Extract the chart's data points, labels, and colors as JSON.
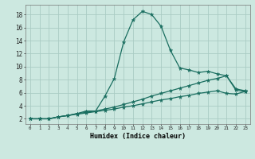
{
  "xlabel": "Humidex (Indice chaleur)",
  "background_color": "#cce8e0",
  "grid_color": "#aaccc4",
  "line_color": "#1a6e60",
  "xlim": [
    -0.5,
    23.5
  ],
  "ylim": [
    1.2,
    19.5
  ],
  "x_ticks": [
    0,
    1,
    2,
    3,
    4,
    5,
    6,
    7,
    8,
    9,
    10,
    11,
    12,
    13,
    14,
    15,
    16,
    17,
    18,
    19,
    20,
    21,
    22,
    23
  ],
  "y_ticks": [
    2,
    4,
    6,
    8,
    10,
    12,
    14,
    16,
    18
  ],
  "line1_x": [
    0,
    1,
    2,
    3,
    4,
    5,
    6,
    7,
    8,
    9,
    10,
    11,
    12,
    13,
    14,
    15,
    16,
    17,
    18,
    19,
    20,
    21,
    22,
    23
  ],
  "line1_y": [
    2.0,
    2.0,
    2.0,
    2.3,
    2.5,
    2.8,
    3.2,
    3.2,
    5.5,
    8.2,
    13.8,
    17.2,
    18.5,
    18.0,
    16.2,
    12.5,
    9.8,
    9.5,
    9.1,
    9.3,
    8.9,
    8.6,
    6.6,
    6.3
  ],
  "line2_x": [
    0,
    1,
    2,
    3,
    4,
    5,
    6,
    7,
    8,
    9,
    10,
    11,
    12,
    13,
    14,
    15,
    16,
    17,
    18,
    19,
    20,
    21,
    22,
    23
  ],
  "line2_y": [
    2.0,
    2.0,
    2.0,
    2.3,
    2.5,
    2.8,
    3.0,
    3.2,
    3.5,
    3.8,
    4.2,
    4.6,
    5.0,
    5.5,
    5.9,
    6.3,
    6.7,
    7.1,
    7.5,
    7.9,
    8.2,
    8.6,
    6.4,
    6.2
  ],
  "line3_x": [
    0,
    1,
    2,
    3,
    4,
    5,
    6,
    7,
    8,
    9,
    10,
    11,
    12,
    13,
    14,
    15,
    16,
    17,
    18,
    19,
    20,
    21,
    22,
    23
  ],
  "line3_y": [
    2.0,
    2.0,
    2.0,
    2.3,
    2.5,
    2.7,
    2.9,
    3.1,
    3.3,
    3.5,
    3.8,
    4.0,
    4.3,
    4.6,
    4.9,
    5.1,
    5.4,
    5.6,
    5.9,
    6.1,
    6.3,
    5.9,
    5.8,
    6.2
  ],
  "xlabel_fontsize": 6.0,
  "tick_fontsize_x": 4.2,
  "tick_fontsize_y": 5.5
}
